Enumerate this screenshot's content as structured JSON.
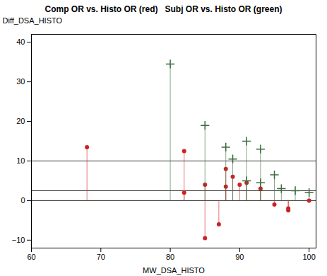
{
  "chart_data": {
    "type": "lollipop",
    "title": "Comp OR vs. Histo OR (red)   Subj OR vs. Histo OR (green)",
    "xlabel": "MW_DSA_HISTO",
    "ylabel": "Diff_DSA_HISTO",
    "xlim": [
      60,
      101
    ],
    "ylim": [
      -12,
      42
    ],
    "xticks": [
      60,
      70,
      80,
      90,
      100
    ],
    "yticks": [
      -10,
      0,
      10,
      20,
      30,
      40
    ],
    "hlines": [
      0,
      2.5,
      10
    ],
    "grid": false,
    "series": [
      {
        "color": "#cc2222",
        "marker": "circle",
        "x": [
          68,
          82,
          82,
          85,
          85,
          87,
          88,
          88,
          89,
          90,
          91,
          93,
          95,
          97,
          97,
          100
        ],
        "values": [
          13.5,
          12.5,
          2.0,
          4.0,
          -9.5,
          -6.0,
          8.0,
          3.5,
          6.0,
          4.0,
          4.5,
          3.0,
          -1.0,
          -2.5,
          -2.0,
          0.0
        ]
      },
      {
        "color": "#3a6b3a",
        "marker": "plus",
        "x": [
          80,
          85,
          88,
          89,
          91,
          91,
          93,
          93,
          95,
          96,
          98,
          100
        ],
        "values": [
          34.5,
          19.0,
          13.5,
          10.5,
          15.0,
          5.0,
          13.0,
          4.5,
          6.5,
          3.0,
          2.5,
          2.0
        ]
      }
    ]
  }
}
